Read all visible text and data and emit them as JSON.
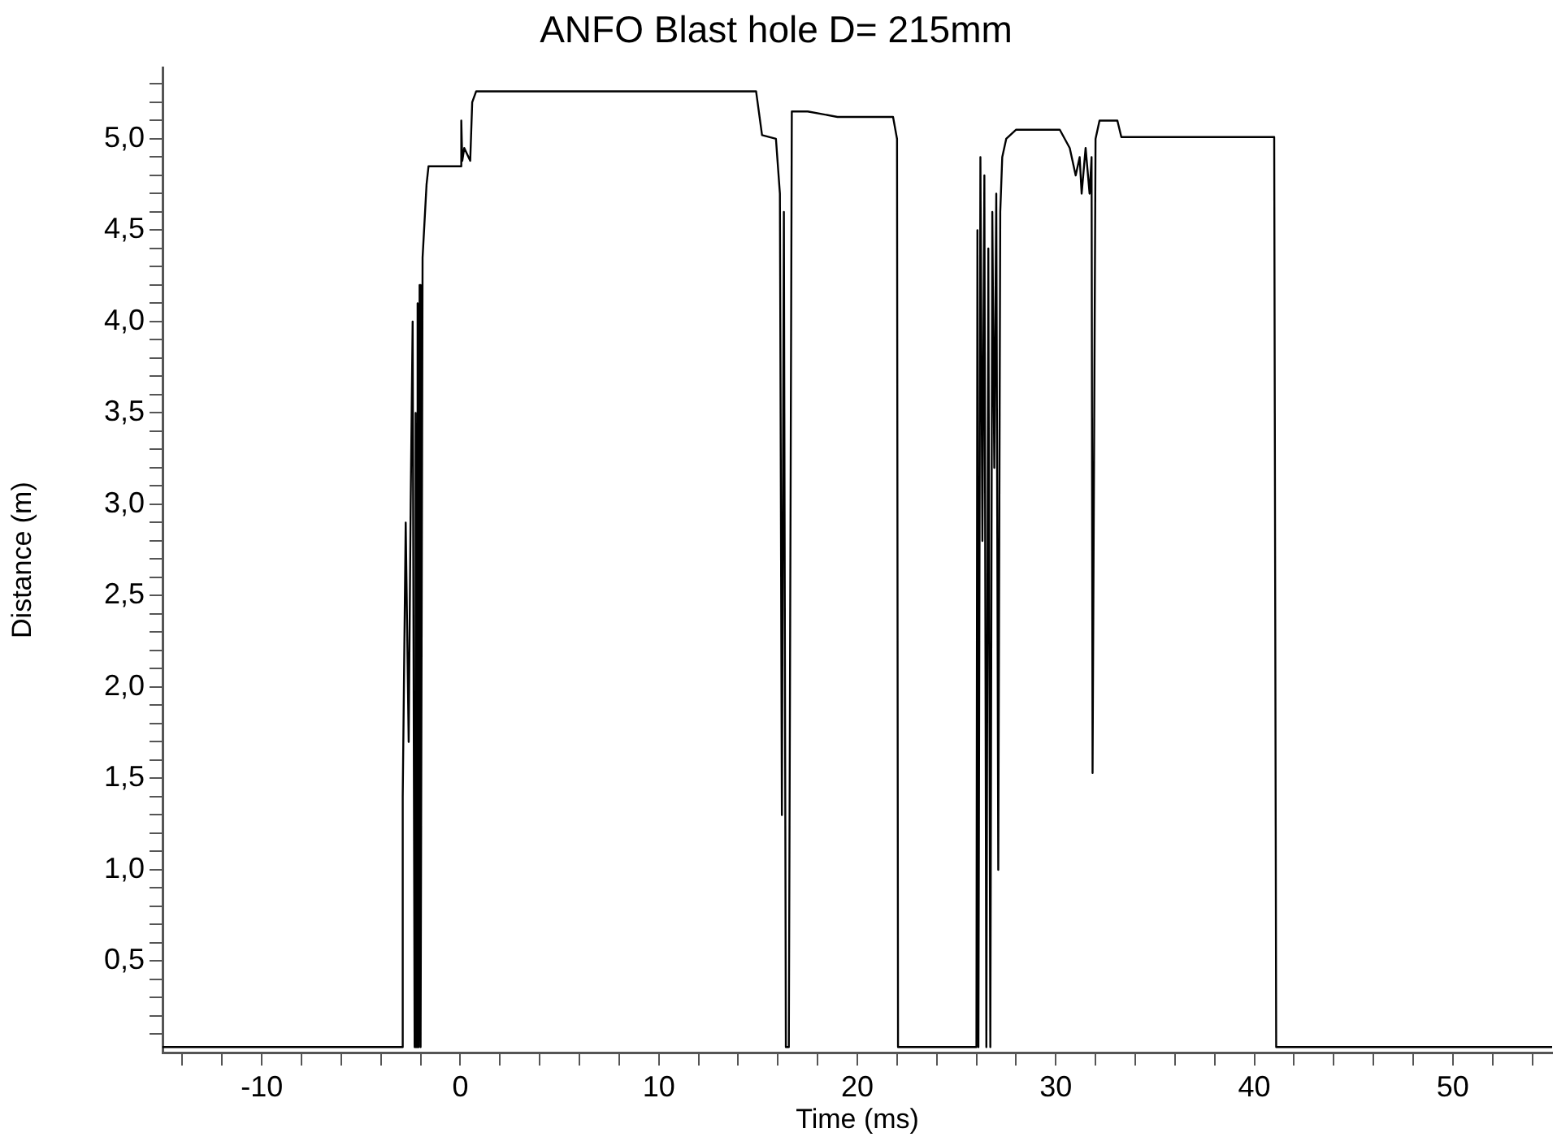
{
  "chart_data": {
    "type": "line",
    "title": "ANFO Blast hole D= 215mm",
    "xlabel": "Time (ms)",
    "ylabel": "Distance (m)",
    "xlim": [
      -15,
      55
    ],
    "ylim": [
      0,
      5.39
    ],
    "grid": false,
    "legend": false,
    "marker": "none",
    "line_style": "solid",
    "xticks": [
      {
        "value": -14,
        "label": null
      },
      {
        "value": -12,
        "label": null
      },
      -10,
      {
        "value": -8,
        "label": null
      },
      {
        "value": -6,
        "label": null
      },
      {
        "value": -4,
        "label": null
      },
      {
        "value": -2,
        "label": null
      },
      0,
      {
        "value": 2,
        "label": null
      },
      {
        "value": 4,
        "label": null
      },
      {
        "value": 6,
        "label": null
      },
      {
        "value": 8,
        "label": null
      },
      10,
      {
        "value": 12,
        "label": null
      },
      {
        "value": 14,
        "label": null
      },
      {
        "value": 16,
        "label": null
      },
      {
        "value": 18,
        "label": null
      },
      20,
      {
        "value": 22,
        "label": null
      },
      {
        "value": 24,
        "label": null
      },
      {
        "value": 26,
        "label": null
      },
      {
        "value": 28,
        "label": null
      },
      30,
      {
        "value": 32,
        "label": null
      },
      {
        "value": 34,
        "label": null
      },
      {
        "value": 36,
        "label": null
      },
      {
        "value": 38,
        "label": null
      },
      40,
      {
        "value": 42,
        "label": null
      },
      {
        "value": 44,
        "label": null
      },
      {
        "value": 46,
        "label": null
      },
      {
        "value": 48,
        "label": null
      },
      50,
      {
        "value": 52,
        "label": null
      },
      {
        "value": 54,
        "label": null
      }
    ],
    "yticks": [
      {
        "value": 0.1,
        "label": null
      },
      {
        "value": 0.2,
        "label": null
      },
      {
        "value": 0.3,
        "label": null
      },
      {
        "value": 0.4,
        "label": null
      },
      {
        "value": 0.5,
        "label": "0,5"
      },
      {
        "value": 0.6,
        "label": null
      },
      {
        "value": 0.7,
        "label": null
      },
      {
        "value": 0.8,
        "label": null
      },
      {
        "value": 0.9,
        "label": null
      },
      {
        "value": 1.0,
        "label": "1,0"
      },
      {
        "value": 1.1,
        "label": null
      },
      {
        "value": 1.2,
        "label": null
      },
      {
        "value": 1.3,
        "label": null
      },
      {
        "value": 1.4,
        "label": null
      },
      {
        "value": 1.5,
        "label": "1,5"
      },
      {
        "value": 1.6,
        "label": null
      },
      {
        "value": 1.7,
        "label": null
      },
      {
        "value": 1.8,
        "label": null
      },
      {
        "value": 1.9,
        "label": null
      },
      {
        "value": 2.0,
        "label": "2,0"
      },
      {
        "value": 2.1,
        "label": null
      },
      {
        "value": 2.2,
        "label": null
      },
      {
        "value": 2.3,
        "label": null
      },
      {
        "value": 2.4,
        "label": null
      },
      {
        "value": 2.5,
        "label": "2,5"
      },
      {
        "value": 2.6,
        "label": null
      },
      {
        "value": 2.7,
        "label": null
      },
      {
        "value": 2.8,
        "label": null
      },
      {
        "value": 2.9,
        "label": null
      },
      {
        "value": 3.0,
        "label": "3,0"
      },
      {
        "value": 3.1,
        "label": null
      },
      {
        "value": 3.2,
        "label": null
      },
      {
        "value": 3.3,
        "label": null
      },
      {
        "value": 3.4,
        "label": null
      },
      {
        "value": 3.5,
        "label": "3,5"
      },
      {
        "value": 3.6,
        "label": null
      },
      {
        "value": 3.7,
        "label": null
      },
      {
        "value": 3.8,
        "label": null
      },
      {
        "value": 3.9,
        "label": null
      },
      {
        "value": 4.0,
        "label": "4,0"
      },
      {
        "value": 4.1,
        "label": null
      },
      {
        "value": 4.2,
        "label": null
      },
      {
        "value": 4.3,
        "label": null
      },
      {
        "value": 4.4,
        "label": null
      },
      {
        "value": 4.5,
        "label": "4,5"
      },
      {
        "value": 4.6,
        "label": null
      },
      {
        "value": 4.7,
        "label": null
      },
      {
        "value": 4.8,
        "label": null
      },
      {
        "value": 4.9,
        "label": null
      },
      {
        "value": 5.0,
        "label": "5,0"
      },
      {
        "value": 5.1,
        "label": null
      },
      {
        "value": 5.2,
        "label": null
      },
      {
        "value": 5.3,
        "label": null
      }
    ],
    "series": [
      {
        "color": "#000000",
        "x": [
          -15,
          -2.95,
          -2.9,
          -2.75,
          -2.6,
          -2.5,
          -2.4,
          -2.3,
          -2.25,
          -2.2,
          -2.15,
          -2.1,
          -2.05,
          -2.0,
          -1.9,
          -1.7,
          -1.6,
          0,
          0.05,
          0.1,
          0.2,
          0.5,
          0.6,
          0.8,
          14.9,
          15.2,
          15.9,
          16.1,
          16.2,
          16.3,
          16.4,
          16.55,
          16.7,
          17.5,
          19,
          21.8,
          22.0,
          22.05,
          26.0,
          26.05,
          26.1,
          26.2,
          26.3,
          26.4,
          26.5,
          26.6,
          26.7,
          26.8,
          26.9,
          27.0,
          27.1,
          27.2,
          27.3,
          27.5,
          28,
          30.2,
          30.7,
          31.0,
          31.2,
          31.3,
          31.5,
          31.7,
          31.8,
          31.85,
          32.0,
          32.2,
          33.1,
          33.3,
          41.0,
          41.1,
          55
        ],
        "values": [
          0.03,
          0.03,
          1.4,
          2.9,
          1.7,
          3.0,
          4.0,
          0.03,
          3.5,
          0.03,
          4.1,
          0.03,
          4.2,
          0.03,
          4.35,
          4.75,
          4.85,
          4.85,
          5.1,
          4.88,
          4.95,
          4.88,
          5.2,
          5.26,
          5.26,
          5.02,
          5.0,
          4.7,
          1.3,
          4.6,
          0.03,
          0.03,
          5.15,
          5.15,
          5.12,
          5.12,
          5.0,
          0.03,
          0.03,
          4.5,
          0.03,
          4.9,
          2.8,
          4.8,
          0.03,
          4.4,
          0.03,
          4.6,
          3.2,
          4.7,
          1.0,
          4.6,
          4.9,
          5.0,
          5.05,
          5.05,
          4.95,
          4.8,
          4.9,
          4.7,
          4.95,
          4.7,
          4.9,
          1.53,
          5.0,
          5.1,
          5.1,
          5.01,
          5.01,
          0.03,
          0.03
        ]
      }
    ]
  }
}
